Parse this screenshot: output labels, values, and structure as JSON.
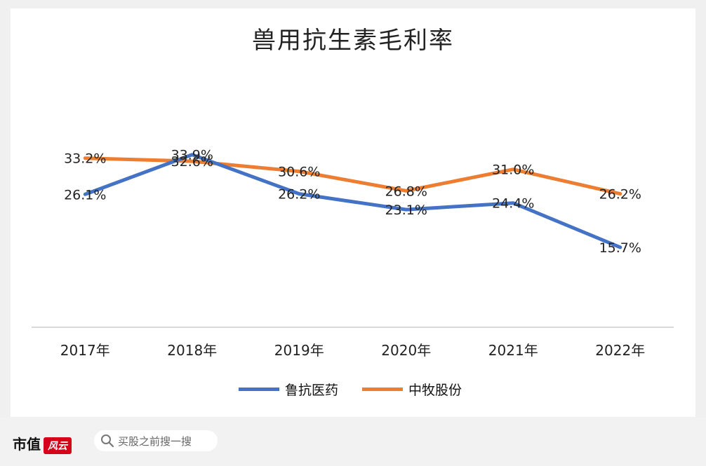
{
  "chart_data": {
    "type": "line",
    "title": "兽用抗生素毛利率",
    "categories": [
      "2017年",
      "2018年",
      "2019年",
      "2020年",
      "2021年",
      "2022年"
    ],
    "series": [
      {
        "name": "鲁抗医药",
        "color": "#4472c4",
        "values": [
          26.1,
          33.9,
          26.2,
          23.1,
          24.4,
          15.7
        ],
        "labels": [
          "26.1%",
          "33.9%",
          "26.2%",
          "23.1%",
          "24.4%",
          "15.7%"
        ]
      },
      {
        "name": "中牧股份",
        "color": "#ed7d31",
        "values": [
          33.2,
          32.6,
          30.6,
          26.8,
          31.0,
          26.2
        ],
        "labels": [
          "33.2%",
          "32.6%",
          "30.6%",
          "26.8%",
          "31.0%",
          "26.2%"
        ]
      }
    ],
    "ylim": [
      0,
      45
    ],
    "grid": false,
    "legend": "bottom"
  },
  "footer": {
    "brand": "市值",
    "brand_logo": "风云",
    "search_placeholder": "买股之前搜一搜",
    "search_icon": "search-icon"
  }
}
